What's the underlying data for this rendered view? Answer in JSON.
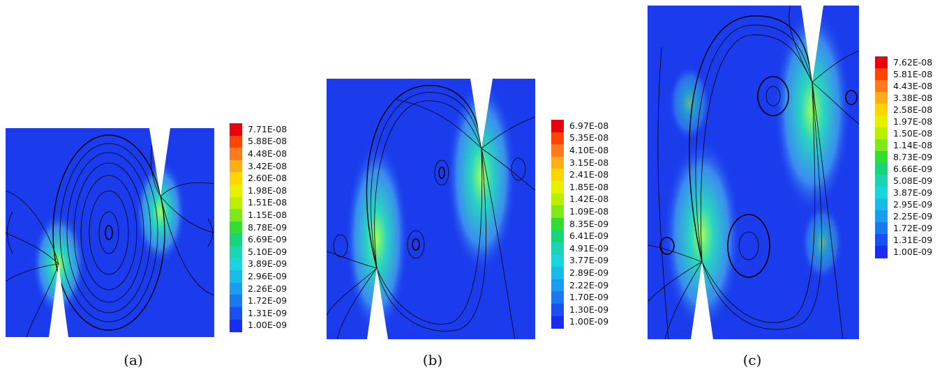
{
  "panels": [
    {
      "caption": "(a)",
      "legend_labels": [
        "7.71E-08",
        "5.88E-08",
        "4.48E-08",
        "3.42E-08",
        "2.60E-08",
        "1.98E-08",
        "1.51E-08",
        "1.15E-08",
        "8.78E-09",
        "6.69E-09",
        "5.10E-09",
        "3.89E-09",
        "2.96E-09",
        "2.26E-09",
        "1.72E-09",
        "1.31E-09",
        "1.00E-09"
      ]
    },
    {
      "caption": "(b)",
      "legend_labels": [
        "6.97E-08",
        "5.35E-08",
        "4.10E-08",
        "3.15E-08",
        "2.41E-08",
        "1.85E-08",
        "1.42E-08",
        "1.09E-08",
        "8.35E-09",
        "6.41E-09",
        "4.91E-09",
        "3.77E-09",
        "2.89E-09",
        "2.22E-09",
        "1.70E-09",
        "1.30E-09",
        "1.00E-09"
      ]
    },
    {
      "caption": "(c)",
      "legend_labels": [
        "7.62E-08",
        "5.81E-08",
        "4.43E-08",
        "3.38E-08",
        "2.58E-08",
        "1.97E-08",
        "1.50E-08",
        "1.14E-08",
        "8.73E-09",
        "6.66E-09",
        "5.08E-09",
        "3.87E-09",
        "2.95E-09",
        "2.25E-09",
        "1.72E-09",
        "1.31E-09",
        "1.00E-09"
      ]
    }
  ],
  "colormap": [
    "#e8000b",
    "#ff4500",
    "#ff7a1a",
    "#ffae1a",
    "#ffd500",
    "#e6f000",
    "#b8f000",
    "#7ee81a",
    "#33dd33",
    "#1ad47a",
    "#1ad4b4",
    "#1ad4e0",
    "#1abbe8",
    "#1a9cf0",
    "#1a78f0",
    "#1a50f0",
    "#1a2cf0"
  ],
  "field_color": "#1a3ced",
  "stream_color": "#000000"
}
